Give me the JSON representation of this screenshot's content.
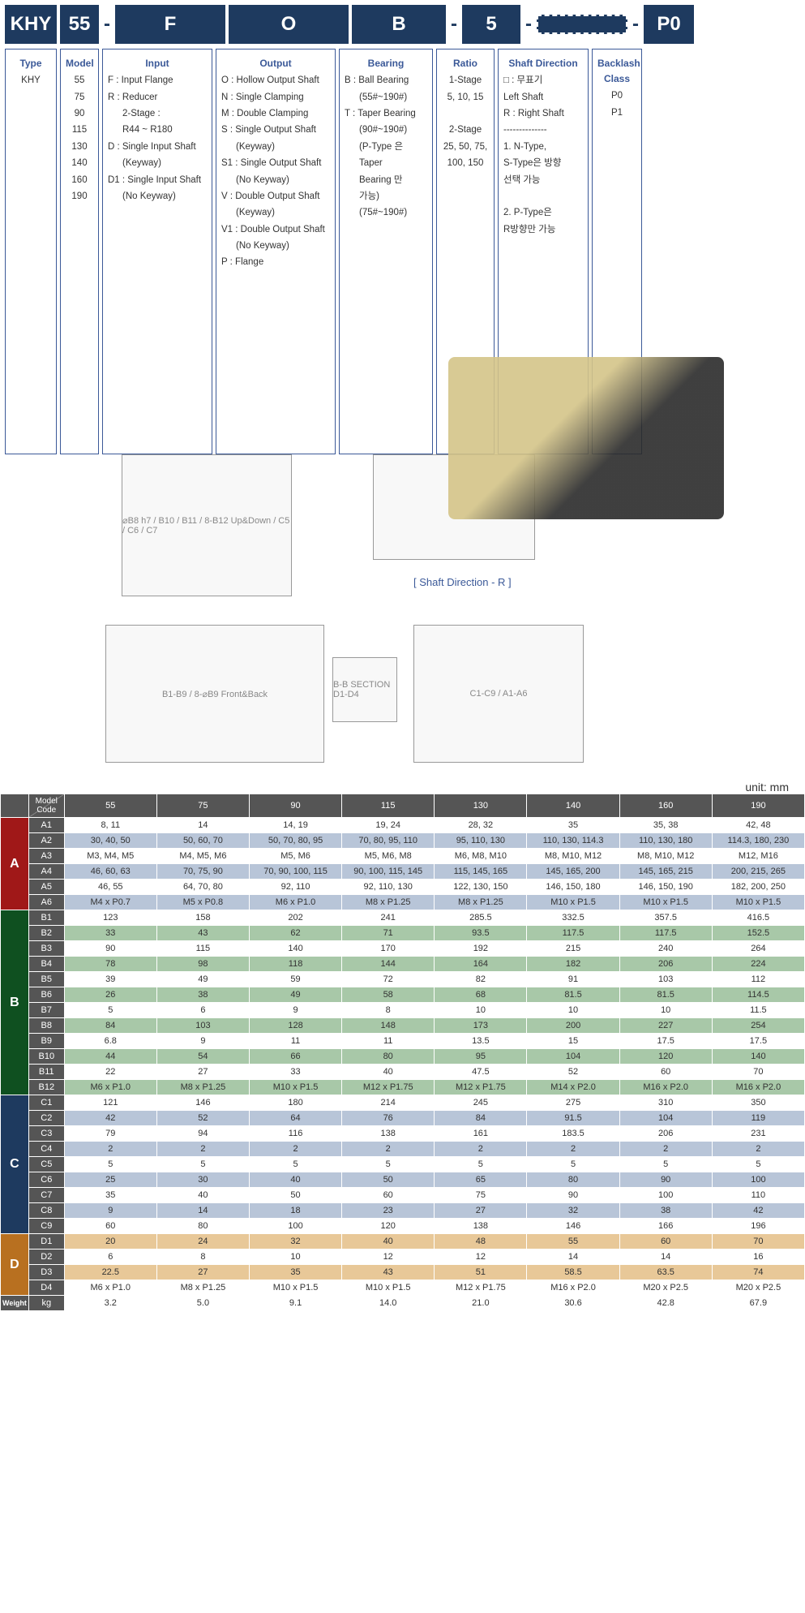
{
  "code": {
    "type": "KHY",
    "model": "55",
    "input": "F",
    "output": "O",
    "bearing": "B",
    "ratio": "5",
    "shaft": "",
    "backlash": "P0"
  },
  "headers": {
    "type": "Type",
    "model": "Model",
    "input": "Input",
    "output": "Output",
    "bearing": "Bearing",
    "ratio": "Ratio",
    "shaft": "Shaft Direction",
    "backlash": "Backlash Class"
  },
  "type_val": "KHY",
  "models": [
    "55",
    "75",
    "90",
    "115",
    "130",
    "140",
    "160",
    "190"
  ],
  "input_opts": [
    {
      "code": "F :",
      "txt": "Input Flange"
    },
    {
      "code": "R :",
      "txt": "Reducer"
    },
    {
      "code": "",
      "txt": "2-Stage :",
      "indent": true
    },
    {
      "code": "",
      "txt": "R44 ~ R180",
      "indent": true
    },
    {
      "code": "D :",
      "txt": "Single Input Shaft"
    },
    {
      "code": "",
      "txt": "(Keyway)",
      "indent": true
    },
    {
      "code": "D1 :",
      "txt": "Single Input Shaft"
    },
    {
      "code": "",
      "txt": "(No Keyway)",
      "indent": true
    }
  ],
  "output_opts": [
    {
      "code": "O :",
      "txt": "Hollow Output Shaft"
    },
    {
      "code": "N :",
      "txt": "Single Clamping"
    },
    {
      "code": "M :",
      "txt": "Double Clamping"
    },
    {
      "code": "S :",
      "txt": "Single Output Shaft"
    },
    {
      "code": "",
      "txt": "(Keyway)",
      "indent": true
    },
    {
      "code": "S1 :",
      "txt": "Single Output Shaft"
    },
    {
      "code": "",
      "txt": "(No Keyway)",
      "indent": true
    },
    {
      "code": "V :",
      "txt": "Double Output Shaft"
    },
    {
      "code": "",
      "txt": "(Keyway)",
      "indent": true
    },
    {
      "code": "V1 :",
      "txt": "Double Output Shaft"
    },
    {
      "code": "",
      "txt": "(No Keyway)",
      "indent": true
    },
    {
      "code": "P :",
      "txt": "Flange"
    }
  ],
  "bearing_opts": [
    {
      "code": "B :",
      "txt": "Ball Bearing"
    },
    {
      "code": "",
      "txt": "(55#~190#)",
      "indent": true
    },
    {
      "code": "",
      "txt": ""
    },
    {
      "code": "T :",
      "txt": "Taper Bearing"
    },
    {
      "code": "",
      "txt": "(90#~190#)",
      "indent": true
    },
    {
      "code": "",
      "txt": ""
    },
    {
      "code": "",
      "txt": "(P-Type 은",
      "indent": true
    },
    {
      "code": "",
      "txt": "Taper",
      "indent": true
    },
    {
      "code": "",
      "txt": "Bearing 만",
      "indent": true
    },
    {
      "code": "",
      "txt": "가능)",
      "indent": true
    },
    {
      "code": "",
      "txt": "(75#~190#)",
      "indent": true
    }
  ],
  "ratio_opts": [
    "1-Stage",
    "5, 10, 15",
    "",
    "2-Stage",
    "25, 50, 75,",
    "100, 150"
  ],
  "shaft_opts": [
    "□ : 무표기",
    "Left Shaft",
    "R : Right Shaft",
    "--------------",
    "1. N-Type,",
    "S-Type은 방향",
    "선택 가능",
    "",
    "2. P-Type은",
    "R방향만 가능"
  ],
  "backlash_opts": [
    "P0",
    "P1"
  ],
  "shaft_dir_label": "[ Shaft Direction - R ]",
  "unit": "unit: mm",
  "table_header": {
    "label": "Model Code",
    "cols": [
      "55",
      "75",
      "90",
      "115",
      "130",
      "140",
      "160",
      "190"
    ]
  },
  "rows": [
    {
      "g": "A",
      "c": "A1",
      "s": "r-white",
      "v": [
        "8, 11",
        "14",
        "14, 19",
        "19, 24",
        "28, 32",
        "35",
        "35, 38",
        "42, 48"
      ]
    },
    {
      "g": "A",
      "c": "A2",
      "s": "r-blue",
      "v": [
        "30, 40, 50",
        "50, 60, 70",
        "50, 70, 80, 95",
        "70, 80, 95, 110",
        "95, 110, 130",
        "110, 130, 114.3",
        "110, 130, 180",
        "114.3, 180, 230"
      ]
    },
    {
      "g": "A",
      "c": "A3",
      "s": "r-white",
      "v": [
        "M3, M4, M5",
        "M4, M5, M6",
        "M5, M6",
        "M5, M6, M8",
        "M6, M8, M10",
        "M8, M10, M12",
        "M8, M10, M12",
        "M12, M16"
      ]
    },
    {
      "g": "A",
      "c": "A4",
      "s": "r-blue",
      "v": [
        "46, 60, 63",
        "70, 75, 90",
        "70, 90, 100, 115",
        "90, 100, 115, 145",
        "115, 145, 165",
        "145, 165, 200",
        "145, 165, 215",
        "200, 215, 265"
      ]
    },
    {
      "g": "A",
      "c": "A5",
      "s": "r-white",
      "v": [
        "46, 55",
        "64, 70, 80",
        "92, 110",
        "92, 110, 130",
        "122, 130, 150",
        "146, 150, 180",
        "146, 150, 190",
        "182, 200, 250"
      ]
    },
    {
      "g": "A",
      "c": "A6",
      "s": "r-blue",
      "v": [
        "M4 x P0.7",
        "M5 x P0.8",
        "M6 x P1.0",
        "M8 x P1.25",
        "M8 x P1.25",
        "M10 x P1.5",
        "M10 x P1.5",
        "M10 x P1.5"
      ]
    },
    {
      "g": "B",
      "c": "B1",
      "s": "r-white",
      "v": [
        "123",
        "158",
        "202",
        "241",
        "285.5",
        "332.5",
        "357.5",
        "416.5"
      ]
    },
    {
      "g": "B",
      "c": "B2",
      "s": "r-green",
      "v": [
        "33",
        "43",
        "62",
        "71",
        "93.5",
        "117.5",
        "117.5",
        "152.5"
      ]
    },
    {
      "g": "B",
      "c": "B3",
      "s": "r-white",
      "v": [
        "90",
        "115",
        "140",
        "170",
        "192",
        "215",
        "240",
        "264"
      ]
    },
    {
      "g": "B",
      "c": "B4",
      "s": "r-green",
      "v": [
        "78",
        "98",
        "118",
        "144",
        "164",
        "182",
        "206",
        "224"
      ]
    },
    {
      "g": "B",
      "c": "B5",
      "s": "r-white",
      "v": [
        "39",
        "49",
        "59",
        "72",
        "82",
        "91",
        "103",
        "112"
      ]
    },
    {
      "g": "B",
      "c": "B6",
      "s": "r-green",
      "v": [
        "26",
        "38",
        "49",
        "58",
        "68",
        "81.5",
        "81.5",
        "114.5"
      ]
    },
    {
      "g": "B",
      "c": "B7",
      "s": "r-white",
      "v": [
        "5",
        "6",
        "9",
        "8",
        "10",
        "10",
        "10",
        "11.5"
      ]
    },
    {
      "g": "B",
      "c": "B8",
      "s": "r-green",
      "v": [
        "84",
        "103",
        "128",
        "148",
        "173",
        "200",
        "227",
        "254"
      ]
    },
    {
      "g": "B",
      "c": "B9",
      "s": "r-white",
      "v": [
        "6.8",
        "9",
        "11",
        "11",
        "13.5",
        "15",
        "17.5",
        "17.5"
      ]
    },
    {
      "g": "B",
      "c": "B10",
      "s": "r-green",
      "v": [
        "44",
        "54",
        "66",
        "80",
        "95",
        "104",
        "120",
        "140"
      ]
    },
    {
      "g": "B",
      "c": "B11",
      "s": "r-white",
      "v": [
        "22",
        "27",
        "33",
        "40",
        "47.5",
        "52",
        "60",
        "70"
      ]
    },
    {
      "g": "B",
      "c": "B12",
      "s": "r-green",
      "v": [
        "M6 x P1.0",
        "M8 x P1.25",
        "M10 x P1.5",
        "M12 x P1.75",
        "M12 x P1.75",
        "M14 x P2.0",
        "M16 x P2.0",
        "M16 x P2.0"
      ]
    },
    {
      "g": "C",
      "c": "C1",
      "s": "r-white",
      "v": [
        "121",
        "146",
        "180",
        "214",
        "245",
        "275",
        "310",
        "350"
      ]
    },
    {
      "g": "C",
      "c": "C2",
      "s": "r-blue",
      "v": [
        "42",
        "52",
        "64",
        "76",
        "84",
        "91.5",
        "104",
        "119"
      ]
    },
    {
      "g": "C",
      "c": "C3",
      "s": "r-white",
      "v": [
        "79",
        "94",
        "116",
        "138",
        "161",
        "183.5",
        "206",
        "231"
      ]
    },
    {
      "g": "C",
      "c": "C4",
      "s": "r-blue",
      "v": [
        "2",
        "2",
        "2",
        "2",
        "2",
        "2",
        "2",
        "2"
      ]
    },
    {
      "g": "C",
      "c": "C5",
      "s": "r-white",
      "v": [
        "5",
        "5",
        "5",
        "5",
        "5",
        "5",
        "5",
        "5"
      ]
    },
    {
      "g": "C",
      "c": "C6",
      "s": "r-blue",
      "v": [
        "25",
        "30",
        "40",
        "50",
        "65",
        "80",
        "90",
        "100"
      ]
    },
    {
      "g": "C",
      "c": "C7",
      "s": "r-white",
      "v": [
        "35",
        "40",
        "50",
        "60",
        "75",
        "90",
        "100",
        "110"
      ]
    },
    {
      "g": "C",
      "c": "C8",
      "s": "r-blue",
      "v": [
        "9",
        "14",
        "18",
        "23",
        "27",
        "32",
        "38",
        "42"
      ]
    },
    {
      "g": "C",
      "c": "C9",
      "s": "r-white",
      "v": [
        "60",
        "80",
        "100",
        "120",
        "138",
        "146",
        "166",
        "196"
      ]
    },
    {
      "g": "D",
      "c": "D1",
      "s": "r-orange",
      "v": [
        "20",
        "24",
        "32",
        "40",
        "48",
        "55",
        "60",
        "70"
      ]
    },
    {
      "g": "D",
      "c": "D2",
      "s": "r-white",
      "v": [
        "6",
        "8",
        "10",
        "12",
        "12",
        "14",
        "14",
        "16"
      ]
    },
    {
      "g": "D",
      "c": "D3",
      "s": "r-orange",
      "v": [
        "22.5",
        "27",
        "35",
        "43",
        "51",
        "58.5",
        "63.5",
        "74"
      ]
    },
    {
      "g": "D",
      "c": "D4",
      "s": "r-white",
      "v": [
        "M6 x P1.0",
        "M8 x P1.25",
        "M10 x P1.5",
        "M10 x P1.5",
        "M12 x P1.75",
        "M16 x P2.0",
        "M20 x P2.5",
        "M20 x P2.5"
      ]
    },
    {
      "g": "W",
      "c": "kg",
      "s": "r-white",
      "v": [
        "3.2",
        "5.0",
        "9.1",
        "14.0",
        "21.0",
        "30.6",
        "42.8",
        "67.9"
      ]
    }
  ],
  "groups": {
    "A": {
      "cls": "side-a",
      "span": 6,
      "lbl": "A"
    },
    "B": {
      "cls": "side-b",
      "span": 12,
      "lbl": "B"
    },
    "C": {
      "cls": "side-c",
      "span": 9,
      "lbl": "C"
    },
    "D": {
      "cls": "side-d",
      "span": 4,
      "lbl": "D"
    },
    "W": {
      "cls": "side-w",
      "span": 1,
      "lbl": "Weight"
    }
  }
}
